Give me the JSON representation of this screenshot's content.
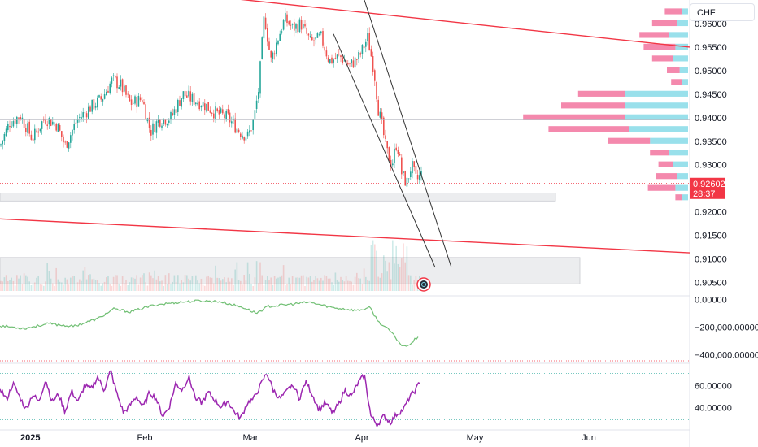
{
  "currency_label": "CHF",
  "current_price_tag": {
    "price": "0.92602",
    "countdown": "28:37",
    "color": "#f23645"
  },
  "colors": {
    "up": "#26a69a",
    "down": "#ef5350",
    "rsi": "#9c27b0",
    "trendline": "#f23645",
    "vp_up": "#7fd8e6",
    "vp_down": "#f06292",
    "channel": "#333333",
    "cum": "#4caf50"
  },
  "chart_data": [
    {
      "type": "candlestick",
      "pane": "price",
      "ylim": [
        0.9025,
        0.965
      ],
      "y_ticks": [
        "0.96000",
        "0.95500",
        "0.95000",
        "0.94500",
        "0.94000",
        "0.93500",
        "0.93000",
        "0.92000",
        "0.91500",
        "0.91000",
        "0.90500"
      ],
      "x_ticks": [
        {
          "label": "2025",
          "bold": true
        },
        {
          "label": "Feb",
          "bold": false
        },
        {
          "label": "Mar",
          "bold": false
        },
        {
          "label": "Apr",
          "bold": false
        },
        {
          "label": "May",
          "bold": false
        },
        {
          "label": "Jun",
          "bold": false
        }
      ],
      "close_path": [
        [
          0,
          0.934
        ],
        [
          12,
          0.939
        ],
        [
          25,
          0.9405
        ],
        [
          40,
          0.9355
        ],
        [
          55,
          0.94
        ],
        [
          70,
          0.9385
        ],
        [
          80,
          0.934
        ],
        [
          95,
          0.9395
        ],
        [
          110,
          0.942
        ],
        [
          125,
          0.944
        ],
        [
          138,
          0.948
        ],
        [
          148,
          0.947
        ],
        [
          160,
          0.943
        ],
        [
          175,
          0.944
        ],
        [
          185,
          0.937
        ],
        [
          195,
          0.9395
        ],
        [
          210,
          0.94
        ],
        [
          225,
          0.945
        ],
        [
          235,
          0.944
        ],
        [
          250,
          0.943
        ],
        [
          265,
          0.941
        ],
        [
          280,
          0.94
        ],
        [
          295,
          0.937
        ],
        [
          305,
          0.936
        ],
        [
          312,
          0.9395
        ],
        [
          318,
          0.946
        ],
        [
          325,
          0.962
        ],
        [
          333,
          0.952
        ],
        [
          342,
          0.957
        ],
        [
          350,
          0.961
        ],
        [
          360,
          0.959
        ],
        [
          370,
          0.96
        ],
        [
          382,
          0.956
        ],
        [
          395,
          0.957
        ],
        [
          405,
          0.952
        ],
        [
          418,
          0.953
        ],
        [
          430,
          0.951
        ],
        [
          442,
          0.953
        ],
        [
          452,
          0.957
        ],
        [
          460,
          0.95
        ],
        [
          465,
          0.942
        ],
        [
          470,
          0.938
        ],
        [
          475,
          0.933
        ],
        [
          482,
          0.93
        ],
        [
          488,
          0.935
        ],
        [
          494,
          0.928
        ],
        [
          500,
          0.926
        ],
        [
          506,
          0.93
        ],
        [
          512,
          0.9265
        ],
        [
          518,
          0.928
        ]
      ],
      "current_price": 0.92602,
      "horizontal_line": 0.9396,
      "trendlines": [
        {
          "from": [
            0.9655,
            275
          ],
          "to": [
            0.955,
            848
          ]
        },
        {
          "from": [
            0.9185,
            0
          ],
          "to": [
            0.9113,
            848
          ]
        }
      ],
      "channel_lines": [
        {
          "from": [
            0.9666,
            445
          ],
          "to": [
            0.9082,
            555
          ]
        },
        {
          "from": [
            0.9578,
            410
          ],
          "to": [
            0.9082,
            535
          ]
        }
      ],
      "zones": [
        {
          "from_price": 0.9223,
          "to_price": 0.924,
          "x_end": 683
        },
        {
          "from_price": 0.9047,
          "to_price": 0.9103,
          "x_end": 713
        }
      ]
    },
    {
      "type": "volume_profile",
      "price_rows": [
        0.9625,
        0.96,
        0.9575,
        0.955,
        0.9525,
        0.95,
        0.9475,
        0.945,
        0.9425,
        0.94,
        0.9375,
        0.935,
        0.9325,
        0.93,
        0.9275,
        0.925,
        0.923
      ],
      "up": [
        3,
        5,
        9,
        6,
        7,
        4,
        3,
        30,
        30,
        30,
        28,
        18,
        9,
        7,
        5,
        6,
        3
      ],
      "down": [
        8,
        12,
        14,
        15,
        10,
        6,
        5,
        22,
        30,
        48,
        38,
        20,
        9,
        7,
        10,
        13,
        3
      ]
    },
    {
      "type": "histogram",
      "pane": "volume"
    },
    {
      "type": "line",
      "pane": "cumulative",
      "ylim": [
        -450000,
        20000
      ],
      "y_ticks": [
        {
          "label": "0.00000",
          "value": 0
        },
        {
          "label": "−200,000.00000",
          "value": -200000
        },
        {
          "label": "−400,000.00000",
          "value": -400000
        }
      ],
      "points": [
        [
          0,
          -190000
        ],
        [
          30,
          -210000
        ],
        [
          60,
          -175000
        ],
        [
          90,
          -195000
        ],
        [
          120,
          -140000
        ],
        [
          140,
          -70000
        ],
        [
          160,
          -90000
        ],
        [
          190,
          -40000
        ],
        [
          220,
          -20000
        ],
        [
          245,
          -10000
        ],
        [
          270,
          -15000
        ],
        [
          300,
          -60000
        ],
        [
          315,
          -100000
        ],
        [
          330,
          -50000
        ],
        [
          350,
          -40000
        ],
        [
          380,
          -20000
        ],
        [
          410,
          -60000
        ],
        [
          440,
          -80000
        ],
        [
          455,
          -60000
        ],
        [
          465,
          -160000
        ],
        [
          480,
          -230000
        ],
        [
          495,
          -340000
        ],
        [
          505,
          -320000
        ],
        [
          515,
          -260000
        ]
      ]
    },
    {
      "type": "line",
      "pane": "rsi",
      "ylim": [
        20,
        80
      ],
      "y_ticks": [
        {
          "label": "60.00000",
          "value": 60
        },
        {
          "label": "40.00000",
          "value": 40
        }
      ],
      "levels": [
        70,
        30
      ],
      "points": [
        [
          0,
          58
        ],
        [
          8,
          47
        ],
        [
          16,
          62
        ],
        [
          24,
          50
        ],
        [
          32,
          38
        ],
        [
          40,
          52
        ],
        [
          48,
          45
        ],
        [
          56,
          66
        ],
        [
          64,
          45
        ],
        [
          72,
          52
        ],
        [
          80,
          36
        ],
        [
          88,
          55
        ],
        [
          96,
          45
        ],
        [
          104,
          60
        ],
        [
          112,
          57
        ],
        [
          120,
          68
        ],
        [
          128,
          56
        ],
        [
          136,
          74
        ],
        [
          144,
          52
        ],
        [
          152,
          35
        ],
        [
          160,
          42
        ],
        [
          168,
          50
        ],
        [
          176,
          40
        ],
        [
          184,
          54
        ],
        [
          192,
          48
        ],
        [
          200,
          32
        ],
        [
          208,
          40
        ],
        [
          216,
          62
        ],
        [
          224,
          56
        ],
        [
          232,
          68
        ],
        [
          240,
          50
        ],
        [
          248,
          44
        ],
        [
          256,
          54
        ],
        [
          264,
          47
        ],
        [
          272,
          40
        ],
        [
          280,
          46
        ],
        [
          288,
          36
        ],
        [
          296,
          30
        ],
        [
          304,
          44
        ],
        [
          312,
          48
        ],
        [
          320,
          60
        ],
        [
          328,
          72
        ],
        [
          336,
          56
        ],
        [
          344,
          48
        ],
        [
          352,
          54
        ],
        [
          360,
          62
        ],
        [
          368,
          48
        ],
        [
          376,
          64
        ],
        [
          384,
          52
        ],
        [
          392,
          38
        ],
        [
          400,
          44
        ],
        [
          408,
          36
        ],
        [
          416,
          42
        ],
        [
          424,
          56
        ],
        [
          432,
          50
        ],
        [
          440,
          62
        ],
        [
          448,
          70
        ],
        [
          456,
          32
        ],
        [
          464,
          24
        ],
        [
          472,
          32
        ],
        [
          480,
          26
        ],
        [
          488,
          34
        ],
        [
          496,
          38
        ],
        [
          504,
          50
        ],
        [
          512,
          57
        ],
        [
          516,
          64
        ]
      ]
    }
  ]
}
